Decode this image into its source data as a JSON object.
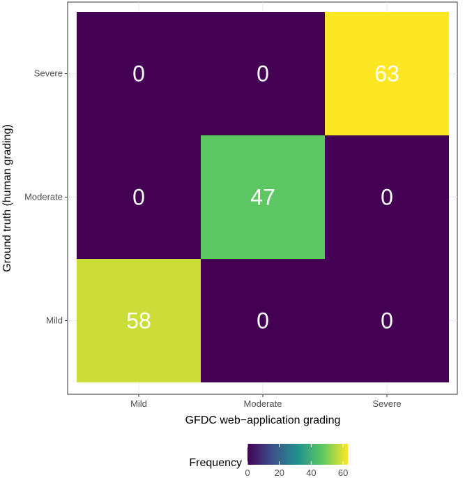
{
  "chart_data": {
    "type": "heatmap",
    "xlabel": "GFDC web−application grading",
    "ylabel": "Ground truth (human grading)",
    "x_categories": [
      "Mild",
      "Moderate",
      "Severe"
    ],
    "y_categories": [
      "Mild",
      "Moderate",
      "Severe"
    ],
    "values": [
      {
        "x": "Mild",
        "y": "Severe",
        "value": 0
      },
      {
        "x": "Moderate",
        "y": "Severe",
        "value": 0
      },
      {
        "x": "Severe",
        "y": "Severe",
        "value": 63
      },
      {
        "x": "Mild",
        "y": "Moderate",
        "value": 0
      },
      {
        "x": "Moderate",
        "y": "Moderate",
        "value": 47
      },
      {
        "x": "Severe",
        "y": "Moderate",
        "value": 0
      },
      {
        "x": "Mild",
        "y": "Mild",
        "value": 58
      },
      {
        "x": "Moderate",
        "y": "Mild",
        "value": 0
      },
      {
        "x": "Severe",
        "y": "Mild",
        "value": 0
      }
    ],
    "legend": {
      "title": "Frequency",
      "ticks": [
        0,
        20,
        40,
        60
      ],
      "range": [
        0,
        63
      ],
      "placement": "bottom",
      "colormap": "viridis"
    },
    "grid": true
  }
}
